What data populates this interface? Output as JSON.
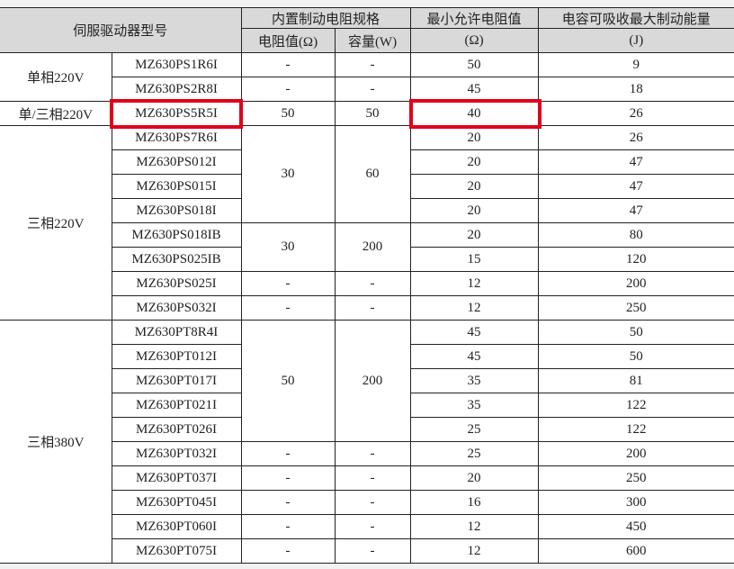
{
  "header": {
    "model": "伺服驱动器型号",
    "builtin": "内置制动电阻规格",
    "resistance": "电阻值(Ω)",
    "capacity": "容量(W)",
    "min_res_1": "最小允许电阻值",
    "min_res_2": "(Ω)",
    "energy_1": "电容可吸收最大制动能量",
    "energy_2": "(J)"
  },
  "highlight_color": "#e0001b",
  "highlighted_model": "MZ630PS5R5I",
  "groups": [
    {
      "phase": "单相220V",
      "rows": [
        {
          "model": "MZ630PS1R6I",
          "min": "50",
          "energy": "9"
        },
        {
          "model": "MZ630PS2R8I",
          "min": "45",
          "energy": "18"
        }
      ],
      "specs": [
        {
          "span": 1,
          "res": "-",
          "cap": "-"
        },
        {
          "span": 1,
          "res": "-",
          "cap": "-"
        }
      ]
    },
    {
      "phase": "单/三相220V",
      "rows": [
        {
          "model": "MZ630PS5R5I",
          "min": "40",
          "energy": "26"
        }
      ],
      "specs": [
        {
          "span": 1,
          "res": "50",
          "cap": "50"
        }
      ]
    },
    {
      "phase": "三相220V",
      "rows": [
        {
          "model": "MZ630PS7R6I",
          "min": "20",
          "energy": "26"
        },
        {
          "model": "MZ630PS012I",
          "min": "20",
          "energy": "47"
        },
        {
          "model": "MZ630PS015I",
          "min": "20",
          "energy": "47"
        },
        {
          "model": "MZ630PS018I",
          "min": "20",
          "energy": "47"
        },
        {
          "model": "MZ630PS018IB",
          "min": "20",
          "energy": "80"
        },
        {
          "model": "MZ630PS025IB",
          "min": "15",
          "energy": "120"
        },
        {
          "model": "MZ630PS025I",
          "min": "12",
          "energy": "200"
        },
        {
          "model": "MZ630PS032I",
          "min": "12",
          "energy": "250"
        }
      ],
      "specs": [
        {
          "span": 4,
          "res": "30",
          "cap": "60"
        },
        {
          "span": 2,
          "res": "30",
          "cap": "200"
        },
        {
          "span": 1,
          "res": "-",
          "cap": "-"
        },
        {
          "span": 1,
          "res": "-",
          "cap": "-"
        }
      ]
    },
    {
      "phase": "三相380V",
      "rows": [
        {
          "model": "MZ630PT8R4I",
          "min": "45",
          "energy": "50"
        },
        {
          "model": "MZ630PT012I",
          "min": "45",
          "energy": "50"
        },
        {
          "model": "MZ630PT017I",
          "min": "35",
          "energy": "81"
        },
        {
          "model": "MZ630PT021I",
          "min": "35",
          "energy": "122"
        },
        {
          "model": "MZ630PT026I",
          "min": "25",
          "energy": "122"
        },
        {
          "model": "MZ630PT032I",
          "min": "25",
          "energy": "200"
        },
        {
          "model": "MZ630PT037I",
          "min": "20",
          "energy": "250"
        },
        {
          "model": "MZ630PT045I",
          "min": "16",
          "energy": "300"
        },
        {
          "model": "MZ630PT060I",
          "min": "12",
          "energy": "450"
        },
        {
          "model": "MZ630PT075I",
          "min": "12",
          "energy": "600"
        }
      ],
      "specs": [
        {
          "span": 5,
          "res": "50",
          "cap": "200"
        },
        {
          "span": 1,
          "res": "-",
          "cap": "-"
        },
        {
          "span": 1,
          "res": "-",
          "cap": "-"
        },
        {
          "span": 1,
          "res": "-",
          "cap": "-"
        },
        {
          "span": 1,
          "res": "-",
          "cap": "-"
        },
        {
          "span": 1,
          "res": "-",
          "cap": "-"
        }
      ]
    }
  ]
}
